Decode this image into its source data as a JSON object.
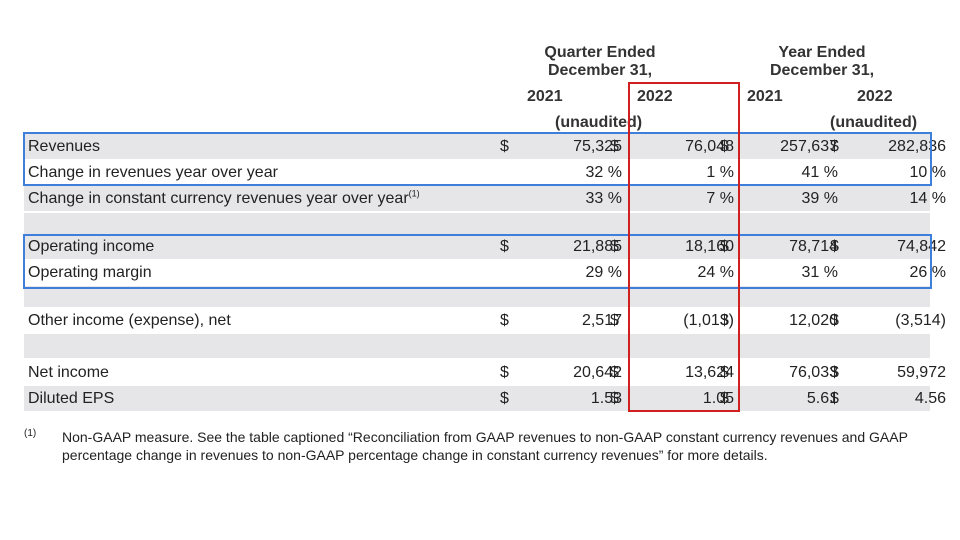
{
  "header": {
    "quarter_group": "Quarter Ended\nDecember 31,",
    "year_group": "Year Ended\nDecember 31,",
    "col_labels": [
      "2021",
      "2022",
      "2021",
      "2022"
    ],
    "unaudited_q": "(unaudited)",
    "unaudited_y": "(unaudited)"
  },
  "rows": [
    {
      "label": "Revenues",
      "sup": "",
      "cells": [
        "$",
        "75,325",
        "$",
        "76,048",
        "$",
        "257,637",
        "$",
        "282,836"
      ]
    },
    {
      "label": "Change in revenues year over year",
      "sup": "",
      "cells": [
        "",
        "32 %",
        "",
        "1 %",
        "",
        "41 %",
        "",
        "10 %"
      ]
    },
    {
      "label": "Change in constant currency revenues year over year",
      "sup": "(1)",
      "cells": [
        "",
        "33 %",
        "",
        "7 %",
        "",
        "39 %",
        "",
        "14 %"
      ]
    },
    {
      "label": "Operating income",
      "sup": "",
      "cells": [
        "$",
        "21,885",
        "$",
        "18,160",
        "$",
        "78,714",
        "$",
        "74,842"
      ]
    },
    {
      "label": "Operating margin",
      "sup": "",
      "cells": [
        "",
        "29 %",
        "",
        "24 %",
        "",
        "31 %",
        "",
        "26 %"
      ]
    },
    {
      "label": "Other income (expense), net",
      "sup": "",
      "cells": [
        "$",
        "2,517",
        "$",
        "(1,013)",
        "$",
        "12,020",
        "$",
        "(3,514)"
      ]
    },
    {
      "label": "Net income",
      "sup": "",
      "cells": [
        "$",
        "20,642",
        "$",
        "13,624",
        "$",
        "76,033",
        "$",
        "59,972"
      ]
    },
    {
      "label": "Diluted EPS",
      "sup": "",
      "cells": [
        "$",
        "1.53",
        "$",
        "1.05",
        "$",
        "5.61",
        "$",
        "4.56"
      ]
    }
  ],
  "footnote": {
    "marker": "(1)",
    "text": "Non-GAAP measure. See the table captioned “Reconciliation from GAAP revenues to non-GAAP constant currency revenues and GAAP percentage change in revenues to non-GAAP percentage change in constant currency revenues” for more details."
  },
  "colors": {
    "shade": "#e6e6e8",
    "blue_box": "#3f7fdc",
    "red_box": "#d01f1f"
  }
}
